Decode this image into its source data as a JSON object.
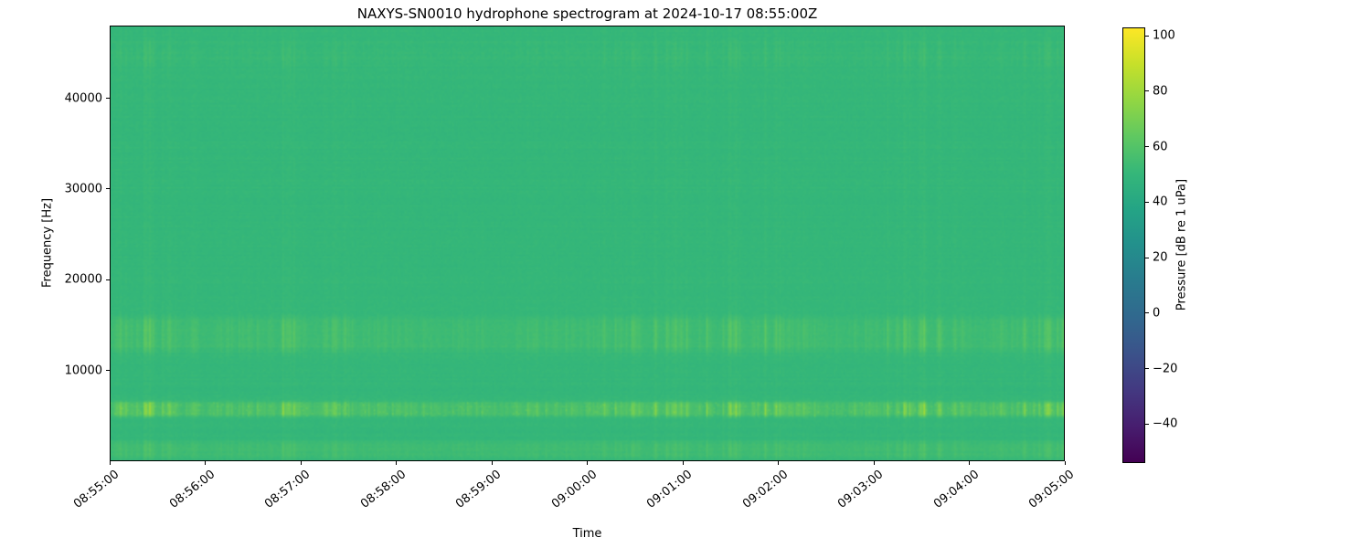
{
  "figure": {
    "background": "#ffffff"
  },
  "chart_data": {
    "type": "heatmap",
    "title": "NAXYS-SN0010 hydrophone spectrogram at 2024-10-17 08:55:00Z",
    "xlabel": "Time",
    "ylabel": "Frequency [Hz]",
    "x_tick_labels": [
      "08:55:00",
      "08:56:00",
      "08:57:00",
      "08:58:00",
      "08:59:00",
      "09:00:00",
      "09:01:00",
      "09:02:00",
      "09:03:00",
      "09:04:00",
      "09:05:00"
    ],
    "y_ticks": [
      10000,
      20000,
      30000,
      40000
    ],
    "ylim": [
      0,
      48000
    ],
    "duration_seconds": 600,
    "colormap": "viridis",
    "grid": false,
    "colorbar": {
      "label": "Pressure [dB re 1 uPa]",
      "ticks": [
        100,
        80,
        60,
        40,
        20,
        0,
        -20,
        -40
      ],
      "vmin": -54,
      "vmax": 103,
      "position": "right"
    },
    "background_level_db": 50,
    "bands": [
      {
        "name": "low-frequency-noise-floor",
        "freq_range": [
          0,
          2500
        ],
        "offset_db": 3,
        "stripe_gain_db": 7
      },
      {
        "name": "tonal-band-5-7kHz",
        "freq_range": [
          4700,
          6800
        ],
        "offset_db": 4,
        "stripe_gain_db": 26
      },
      {
        "name": "mid-band-12-16kHz",
        "freq_range": [
          11500,
          16500
        ],
        "offset_db": 3,
        "stripe_gain_db": 13
      },
      {
        "name": "high-band-43-47kHz",
        "freq_range": [
          43000,
          47000
        ],
        "offset_db": 1,
        "stripe_gain_db": 4
      }
    ],
    "texture_note": "dense vertical transient striping across all frequencies, brightest dashes in the 5-7 kHz band, broad diffuse striping in the 12-16 kHz band"
  }
}
